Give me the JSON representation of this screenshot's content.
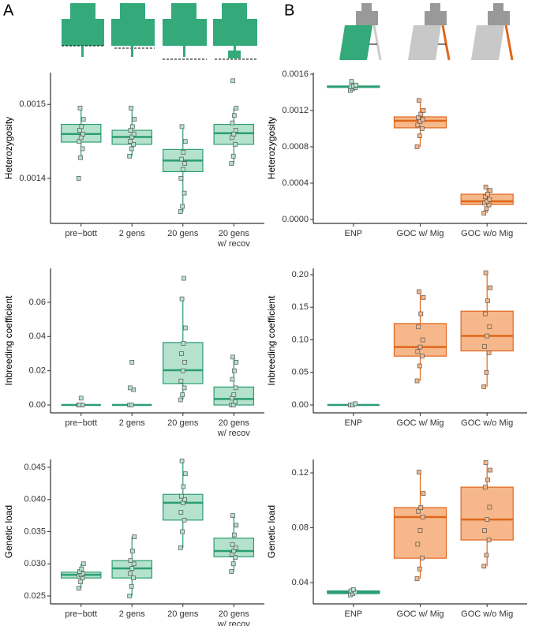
{
  "panel_labels": [
    "A",
    "B"
  ],
  "chart_data": [
    {
      "type": "box",
      "y_label": "Heterozygosity",
      "categories": [
        "pre−bott",
        "2 gens",
        "20 gens",
        "20 gens\nw/ recov"
      ],
      "colors": [
        "#2a9d73",
        "#2a9d73",
        "#2a9d73",
        "#2a9d73"
      ],
      "fills": [
        "#b5e2cc",
        "#b5e2cc",
        "#b5e2cc",
        "#b5e2cc"
      ],
      "ylim": [
        0.001339,
        0.001543
      ],
      "yticks": [
        0.0014,
        0.0015
      ],
      "boxes": [
        {
          "low": 0.001428,
          "q1": 0.001449,
          "median": 0.00146,
          "q3": 0.001473,
          "high": 0.001495
        },
        {
          "low": 0.00143,
          "q1": 0.001446,
          "median": 0.001456,
          "q3": 0.001465,
          "high": 0.001495
        },
        {
          "low": 0.001355,
          "q1": 0.001409,
          "median": 0.001424,
          "q3": 0.001439,
          "high": 0.00147
        },
        {
          "low": 0.00142,
          "q1": 0.001446,
          "median": 0.001461,
          "q3": 0.001473,
          "high": 0.001495
        }
      ],
      "points": [
        [
          0.0014,
          0.001428,
          0.00144,
          0.00145,
          0.001455,
          0.00146,
          0.001465,
          0.00147,
          0.00148,
          0.001495
        ],
        [
          0.00143,
          0.00144,
          0.001446,
          0.00145,
          0.001456,
          0.00146,
          0.001465,
          0.00147,
          0.00148,
          0.001495
        ],
        [
          0.001355,
          0.001362,
          0.00138,
          0.0014,
          0.001412,
          0.00142,
          0.001426,
          0.001435,
          0.00145,
          0.00147
        ],
        [
          0.00142,
          0.00143,
          0.001446,
          0.001455,
          0.00146,
          0.001465,
          0.001475,
          0.001485,
          0.001495,
          0.001532
        ]
      ]
    },
    {
      "type": "box",
      "y_label": "Heterozygosity",
      "categories": [
        "ENP",
        "GOC w/ Mig",
        "GOC w/o Mig"
      ],
      "colors": [
        "#2a9d73",
        "#e0661c",
        "#e0661c"
      ],
      "fills": [
        "#b5e2cc",
        "#f6b88a",
        "#f6b88a"
      ],
      "ylim": [
        -4.35e-05,
        0.001617
      ],
      "yticks": [
        {
          "value": 0,
          "label": "0.0000"
        },
        {
          "value": 0.0004,
          "label": "0.0004"
        },
        {
          "value": 0.0008,
          "label": "0.0008"
        },
        {
          "value": 0.0012,
          "label": "0.0012"
        },
        {
          "value": 0.0016,
          "label": "0.0016"
        }
      ],
      "boxes": [
        {
          "low": 0.00142,
          "q1": 0.001455,
          "median": 0.00146,
          "q3": 0.00147,
          "high": 0.00152
        },
        {
          "low": 0.0008,
          "q1": 0.001009,
          "median": 0.001087,
          "q3": 0.00113,
          "high": 0.00131
        },
        {
          "low": 7e-05,
          "q1": 0.000165,
          "median": 0.0002,
          "q3": 0.000278,
          "high": 0.000357
        }
      ],
      "points": [
        [
          0.00142,
          0.00144,
          0.00145,
          0.00146,
          0.00147,
          0.00148,
          0.00152
        ],
        [
          0.0008,
          0.00092,
          0.001,
          0.00104,
          0.00108,
          0.0011,
          0.00112,
          0.00116,
          0.0012,
          0.00131
        ],
        [
          7e-05,
          0.00012,
          0.00016,
          0.00018,
          0.0002,
          0.00022,
          0.00025,
          0.00028,
          0.00032,
          0.000357
        ]
      ]
    },
    {
      "type": "box",
      "y_label": "Inbreeding coefficient",
      "categories": [
        "pre−bott",
        "2 gens",
        "20 gens",
        "20 gens\nw/ recov"
      ],
      "colors": [
        "#2a9d73",
        "#2a9d73",
        "#2a9d73",
        "#2a9d73"
      ],
      "fills": [
        "#b5e2cc",
        "#b5e2cc",
        "#b5e2cc",
        "#b5e2cc"
      ],
      "ylim": [
        -0.0046,
        0.0798
      ],
      "yticks": [
        {
          "value": 0,
          "label": "0.00"
        },
        {
          "value": 0.02,
          "label": "0.02"
        },
        {
          "value": 0.04,
          "label": "0.04"
        },
        {
          "value": 0.06,
          "label": "0.06"
        }
      ],
      "boxes": [
        {
          "low": 0,
          "q1": 0,
          "median": 0,
          "q3": 0,
          "high": 0
        },
        {
          "low": 0,
          "q1": 0,
          "median": 0,
          "q3": 0,
          "high": 0
        },
        {
          "low": 0.003,
          "q1": 0.0125,
          "median": 0.0203,
          "q3": 0.0365,
          "high": 0.062
        },
        {
          "low": 0,
          "q1": 0,
          "median": 0.0035,
          "q3": 0.0105,
          "high": 0.028
        }
      ],
      "points": [
        [
          0,
          0,
          0,
          0,
          0.004
        ],
        [
          0,
          0,
          0.009,
          0.01,
          0.025
        ],
        [
          0.003,
          0.006,
          0.01,
          0.014,
          0.02,
          0.025,
          0.03,
          0.036,
          0.045,
          0.062,
          0.074
        ],
        [
          0,
          0,
          0.002,
          0.004,
          0.006,
          0.01,
          0.015,
          0.02,
          0.025,
          0.028
        ]
      ]
    },
    {
      "type": "box",
      "y_label": "Inbreeding coefficient",
      "categories": [
        "ENP",
        "GOC w/ Mig",
        "GOC w/o Mig"
      ],
      "colors": [
        "#2a9d73",
        "#e0661c",
        "#e0661c"
      ],
      "fills": [
        "#b5e2cc",
        "#f6b88a",
        "#f6b88a"
      ],
      "ylim": [
        -0.0121,
        0.2097
      ],
      "yticks": [
        {
          "value": 0,
          "label": "0.00"
        },
        0.05,
        {
          "value": 0.1,
          "label": "0.10"
        },
        0.15,
        {
          "value": 0.2,
          "label": "0.20"
        }
      ],
      "boxes": [
        {
          "low": 0,
          "q1": 0,
          "median": 0,
          "q3": 0,
          "high": 0
        },
        {
          "low": 0.037,
          "q1": 0.075,
          "median": 0.089,
          "q3": 0.125,
          "high": 0.174
        },
        {
          "low": 0.028,
          "q1": 0.083,
          "median": 0.106,
          "q3": 0.144,
          "high": 0.203
        }
      ],
      "points": [
        [
          0,
          0,
          0.002
        ],
        [
          0.037,
          0.06,
          0.075,
          0.082,
          0.089,
          0.1,
          0.12,
          0.14,
          0.165,
          0.174
        ],
        [
          0.028,
          0.05,
          0.08,
          0.09,
          0.106,
          0.12,
          0.14,
          0.16,
          0.18,
          0.203
        ]
      ]
    },
    {
      "type": "box",
      "y_label": "Genetic load",
      "categories": [
        "pre−bott",
        "2 gens",
        "20 gens",
        "20 gens\nw/ recov"
      ],
      "colors": [
        "#2a9d73",
        "#2a9d73",
        "#2a9d73",
        "#2a9d73"
      ],
      "fills": [
        "#b5e2cc",
        "#b5e2cc",
        "#b5e2cc",
        "#b5e2cc"
      ],
      "ylim": [
        0.02377,
        0.04623
      ],
      "yticks": [
        0.025,
        {
          "value": 0.03,
          "label": "0.030"
        },
        0.035,
        {
          "value": 0.04,
          "label": "0.040"
        },
        0.045
      ],
      "boxes": [
        {
          "low": 0.0262,
          "q1": 0.0278,
          "median": 0.0283,
          "q3": 0.0287,
          "high": 0.03
        },
        {
          "low": 0.025,
          "q1": 0.0278,
          "median": 0.0293,
          "q3": 0.0305,
          "high": 0.0342
        },
        {
          "low": 0.0325,
          "q1": 0.0368,
          "median": 0.0395,
          "q3": 0.0408,
          "high": 0.046
        },
        {
          "low": 0.0288,
          "q1": 0.0311,
          "median": 0.032,
          "q3": 0.034,
          "high": 0.0375
        }
      ],
      "points": [
        [
          0.0262,
          0.0272,
          0.0278,
          0.0281,
          0.0283,
          0.0285,
          0.0288,
          0.0292,
          0.03
        ],
        [
          0.025,
          0.0265,
          0.0278,
          0.0285,
          0.0293,
          0.03,
          0.0305,
          0.032,
          0.0342
        ],
        [
          0.0325,
          0.035,
          0.0368,
          0.038,
          0.0395,
          0.04,
          0.0405,
          0.042,
          0.044,
          0.046
        ],
        [
          0.0288,
          0.03,
          0.031,
          0.0315,
          0.032,
          0.0325,
          0.033,
          0.0345,
          0.036,
          0.0375
        ]
      ]
    },
    {
      "type": "box",
      "y_label": "Genetic load",
      "categories": [
        "ENP",
        "GOC w/ Mig",
        "GOC w/o Mig"
      ],
      "colors": [
        "#2a9d73",
        "#e0661c",
        "#e0661c"
      ],
      "fills": [
        "#b5e2cc",
        "#f6b88a",
        "#f6b88a"
      ],
      "ylim": [
        0.0245,
        0.1298
      ],
      "yticks": [
        0.04,
        0.08,
        0.12
      ],
      "boxes": [
        {
          "low": 0.031,
          "q1": 0.032,
          "median": 0.033,
          "q3": 0.034,
          "high": 0.035
        },
        {
          "low": 0.0429,
          "q1": 0.0578,
          "median": 0.0878,
          "q3": 0.0947,
          "high": 0.1206
        },
        {
          "low": 0.052,
          "q1": 0.0711,
          "median": 0.086,
          "q3": 0.1096,
          "high": 0.1275
        }
      ],
      "points": [
        [
          0.031,
          0.032,
          0.033,
          0.034,
          0.035
        ],
        [
          0.0429,
          0.05,
          0.058,
          0.068,
          0.078,
          0.0878,
          0.092,
          0.0947,
          0.105,
          0.1206
        ],
        [
          0.052,
          0.06,
          0.0711,
          0.078,
          0.086,
          0.095,
          0.1096,
          0.115,
          0.122,
          0.1275
        ]
      ]
    }
  ]
}
